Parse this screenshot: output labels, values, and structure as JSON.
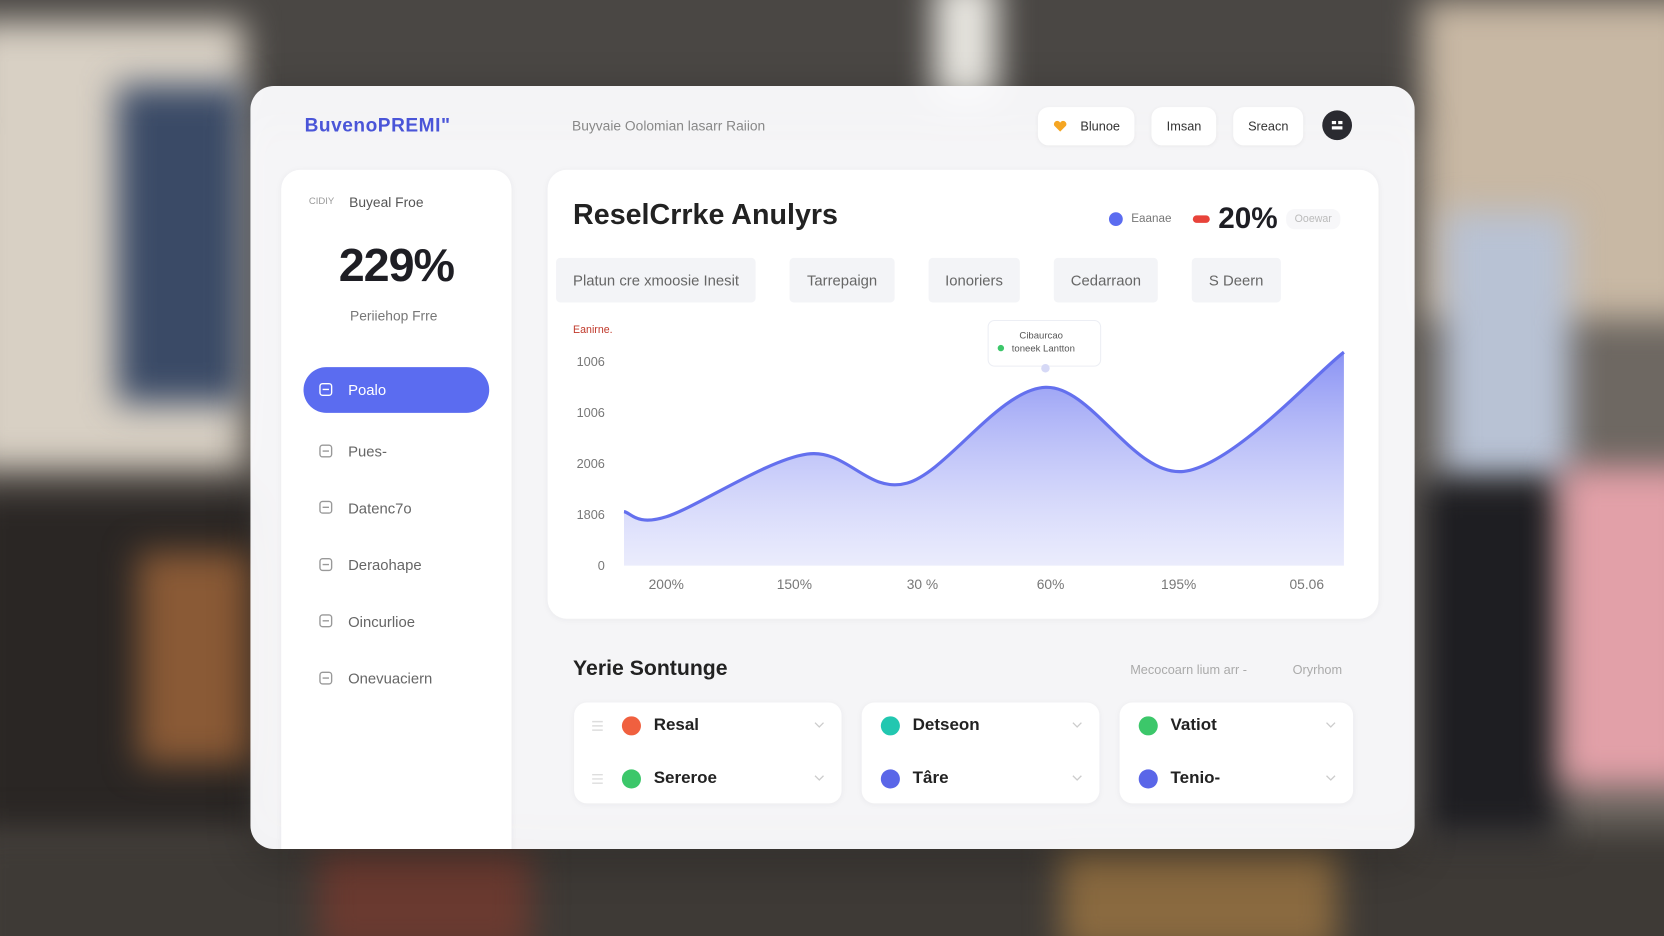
{
  "header": {
    "brand": "BuvenoPREMI\"",
    "subtitle": "Buyvaie Oolomian lasarr Raiion",
    "buttons": [
      "Blunoe",
      "Imsan",
      "Sreacn"
    ]
  },
  "sidebar": {
    "caption": "CIDIY",
    "label": "Buyeal Froe",
    "stat": "229%",
    "stat_label": "Periiehop Frre",
    "nav": [
      "Poalo",
      "Pues-",
      "Datenc7o",
      "Deraohape",
      "Oincurlioe",
      "Onevuaciern"
    ],
    "active": 0
  },
  "main": {
    "title": "ReselCrrke Anulyrs",
    "legend_label": "Eaanae",
    "legend_value": "20%",
    "legend_extra": "Ooewar",
    "tabs": [
      "Platun cre xmoosie Inesit",
      "Tarrepaign",
      "Ionoriers",
      "Cedarraon",
      "S Deern"
    ]
  },
  "chart_data": {
    "type": "area",
    "y_label": "Eanirne.",
    "x": [
      -0.33,
      0,
      1.1,
      1.88,
      2.96,
      4.04,
      5.29
    ],
    "values": [
      1060,
      960,
      2190,
      1620,
      3500,
      1850,
      4190
    ],
    "color": "#6470ee",
    "xlim": [
      -0.33,
      5.32
    ],
    "ylim": [
      0,
      4200
    ],
    "xticks": [
      {
        "value": 0,
        "label": "200%"
      },
      {
        "value": 1,
        "label": "150%"
      },
      {
        "value": 2,
        "label": "30 %"
      },
      {
        "value": 3,
        "label": "60%"
      },
      {
        "value": 4,
        "label": "195%"
      },
      {
        "value": 5,
        "label": "05.06"
      }
    ],
    "yticks": [
      0,
      {
        "value": 1000,
        "label": "1806"
      },
      {
        "value": 2000,
        "label": "2006"
      },
      {
        "value": 3000,
        "label": "1006"
      },
      {
        "value": 4000,
        "label": "1006"
      }
    ],
    "grid": false,
    "annotation": [
      "Cibaurcao",
      "toneek Lantton"
    ]
  },
  "section": {
    "title": "Yerie Sontunge",
    "links": [
      "Mecocoarn lium arr -",
      "Oryrhom"
    ],
    "items": [
      {
        "label": "Resal",
        "color": "#f0603f"
      },
      {
        "label": "Sereroe",
        "color": "#3cc76a"
      },
      {
        "label": "Detseon",
        "color": "#22c7b0"
      },
      {
        "label": "Târe",
        "color": "#5a66e8"
      },
      {
        "label": "Vatiot",
        "color": "#3cc76a"
      },
      {
        "label": "Tenio-",
        "color": "#5a66e8"
      }
    ]
  }
}
